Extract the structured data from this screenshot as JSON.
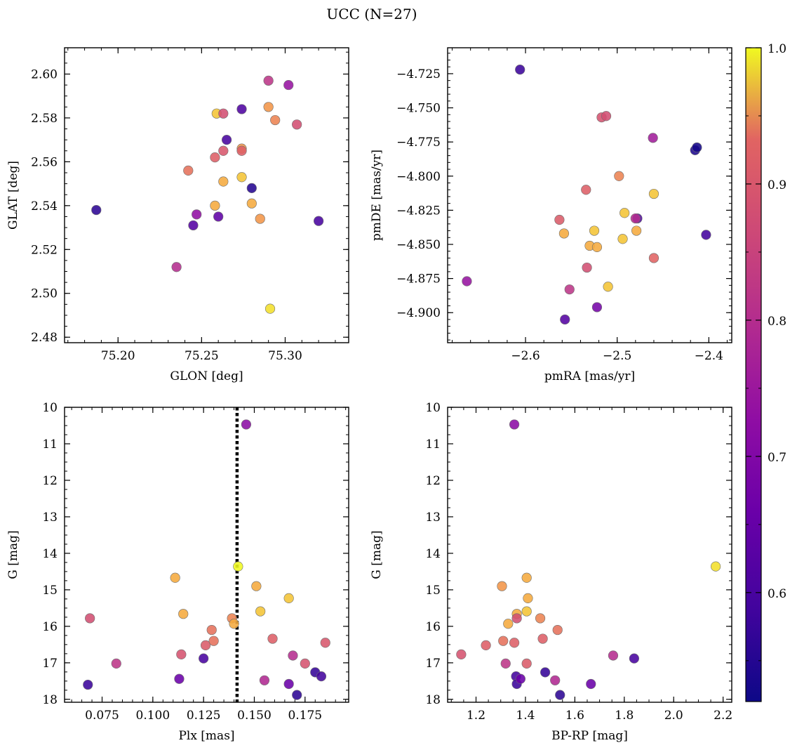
{
  "figure": {
    "title": "UCC (N=27)"
  },
  "colorbar": {
    "min": 0.52,
    "max": 1.0,
    "ticks": [
      0.6,
      0.7,
      0.8,
      0.9,
      1.0
    ],
    "tick_labels": [
      "0.6",
      "0.7",
      "0.8",
      "0.9",
      "1.0"
    ],
    "colormap": "plasma"
  },
  "chart_data": [
    {
      "type": "scatter",
      "id": "lon-lat",
      "xlabel": "GLON [deg]",
      "ylabel": "GLAT [deg]",
      "xlim": [
        75.168,
        75.338
      ],
      "ylim": [
        2.4775,
        2.612
      ],
      "y_inverted": false,
      "xticks": [
        75.2,
        75.25,
        75.3
      ],
      "xtick_labels": [
        "75.20",
        "75.25",
        "75.30"
      ],
      "yticks": [
        2.48,
        2.5,
        2.52,
        2.54,
        2.56,
        2.58,
        2.6
      ],
      "ytick_labels": [
        "2.48",
        "2.50",
        "2.52",
        "2.54",
        "2.56",
        "2.58",
        "2.60"
      ],
      "x_minor_step": 0.01,
      "y_minor_step": 0.005,
      "points": [
        {
          "x": 75.187,
          "y": 2.538,
          "c": 0.56
        },
        {
          "x": 75.235,
          "y": 2.512,
          "c": 0.8
        },
        {
          "x": 75.242,
          "y": 2.556,
          "c": 0.94
        },
        {
          "x": 75.245,
          "y": 2.531,
          "c": 0.62
        },
        {
          "x": 75.247,
          "y": 2.536,
          "c": 0.73
        },
        {
          "x": 75.258,
          "y": 2.54,
          "c": 0.97
        },
        {
          "x": 75.258,
          "y": 2.562,
          "c": 0.92
        },
        {
          "x": 75.259,
          "y": 2.582,
          "c": 0.98
        },
        {
          "x": 75.26,
          "y": 2.535,
          "c": 0.64
        },
        {
          "x": 75.263,
          "y": 2.565,
          "c": 0.9
        },
        {
          "x": 75.263,
          "y": 2.582,
          "c": 0.88
        },
        {
          "x": 75.263,
          "y": 2.551,
          "c": 0.97
        },
        {
          "x": 75.265,
          "y": 2.57,
          "c": 0.6
        },
        {
          "x": 75.274,
          "y": 2.584,
          "c": 0.61
        },
        {
          "x": 75.274,
          "y": 2.566,
          "c": 0.96
        },
        {
          "x": 75.274,
          "y": 2.553,
          "c": 0.98
        },
        {
          "x": 75.28,
          "y": 2.548,
          "c": 0.55
        },
        {
          "x": 75.28,
          "y": 2.541,
          "c": 0.97
        },
        {
          "x": 75.285,
          "y": 2.534,
          "c": 0.96
        },
        {
          "x": 75.29,
          "y": 2.597,
          "c": 0.82
        },
        {
          "x": 75.29,
          "y": 2.585,
          "c": 0.96
        },
        {
          "x": 75.291,
          "y": 2.493,
          "c": 0.99
        },
        {
          "x": 75.294,
          "y": 2.579,
          "c": 0.95
        },
        {
          "x": 75.302,
          "y": 2.595,
          "c": 0.74
        },
        {
          "x": 75.307,
          "y": 2.577,
          "c": 0.88
        },
        {
          "x": 75.32,
          "y": 2.533,
          "c": 0.6
        },
        {
          "x": 75.274,
          "y": 2.565,
          "c": 0.92
        }
      ]
    },
    {
      "type": "scatter",
      "id": "pm",
      "xlabel": "pmRA [mas/yr]",
      "ylabel": "pmDE [mas/yr]",
      "xlim": [
        -2.685,
        -2.375
      ],
      "ylim": [
        -4.922,
        -4.706
      ],
      "y_inverted": false,
      "xticks": [
        -2.6,
        -2.5,
        -2.4
      ],
      "xtick_labels": [
        "−2.6",
        "−2.5",
        "−2.4"
      ],
      "yticks": [
        -4.9,
        -4.875,
        -4.85,
        -4.825,
        -4.8,
        -4.775,
        -4.75,
        -4.725
      ],
      "ytick_labels": [
        "−4.900",
        "−4.875",
        "−4.850",
        "−4.825",
        "−4.800",
        "−4.775",
        "−4.750",
        "−4.725"
      ],
      "x_minor_step": 0.02,
      "y_minor_step": 0.005,
      "points": [
        {
          "x": -2.606,
          "y": -4.722,
          "c": 0.58
        },
        {
          "x": -2.664,
          "y": -4.877,
          "c": 0.74
        },
        {
          "x": -2.563,
          "y": -4.832,
          "c": 0.91
        },
        {
          "x": -2.558,
          "y": -4.842,
          "c": 0.97
        },
        {
          "x": -2.557,
          "y": -4.905,
          "c": 0.62
        },
        {
          "x": -2.552,
          "y": -4.883,
          "c": 0.82
        },
        {
          "x": -2.534,
          "y": -4.81,
          "c": 0.92
        },
        {
          "x": -2.533,
          "y": -4.867,
          "c": 0.88
        },
        {
          "x": -2.53,
          "y": -4.851,
          "c": 0.97
        },
        {
          "x": -2.525,
          "y": -4.84,
          "c": 0.98
        },
        {
          "x": -2.522,
          "y": -4.852,
          "c": 0.97
        },
        {
          "x": -2.522,
          "y": -4.896,
          "c": 0.68
        },
        {
          "x": -2.517,
          "y": -4.757,
          "c": 0.89
        },
        {
          "x": -2.512,
          "y": -4.756,
          "c": 0.88
        },
        {
          "x": -2.51,
          "y": -4.881,
          "c": 0.98
        },
        {
          "x": -2.498,
          "y": -4.8,
          "c": 0.95
        },
        {
          "x": -2.494,
          "y": -4.846,
          "c": 0.98
        },
        {
          "x": -2.492,
          "y": -4.827,
          "c": 0.98
        },
        {
          "x": -2.479,
          "y": -4.84,
          "c": 0.97
        },
        {
          "x": -2.478,
          "y": -4.831,
          "c": 0.61
        },
        {
          "x": -2.48,
          "y": -4.831,
          "c": 0.8
        },
        {
          "x": -2.461,
          "y": -4.772,
          "c": 0.76
        },
        {
          "x": -2.46,
          "y": -4.813,
          "c": 0.98
        },
        {
          "x": -2.46,
          "y": -4.86,
          "c": 0.93
        },
        {
          "x": -2.415,
          "y": -4.781,
          "c": 0.54
        },
        {
          "x": -2.413,
          "y": -4.779,
          "c": 0.53
        },
        {
          "x": -2.403,
          "y": -4.843,
          "c": 0.59
        }
      ]
    },
    {
      "type": "scatter",
      "id": "plx-g",
      "xlabel": "Plx [mas]",
      "ylabel": "G [mag]",
      "xlim": [
        0.0565,
        0.1965
      ],
      "ylim": [
        18.08,
        10.0
      ],
      "y_inverted": true,
      "xticks": [
        0.075,
        0.1,
        0.125,
        0.15,
        0.175
      ],
      "xtick_labels": [
        "0.075",
        "0.100",
        "0.125",
        "0.150",
        "0.175"
      ],
      "yticks": [
        10,
        11,
        12,
        13,
        14,
        15,
        16,
        17,
        18
      ],
      "ytick_labels": [
        "10",
        "11",
        "12",
        "13",
        "14",
        "15",
        "16",
        "17",
        "18"
      ],
      "x_minor_step": 0.005,
      "y_minor_step": 0.25,
      "vline": {
        "x": 0.1415
      },
      "points": [
        {
          "x": 0.068,
          "y": 17.6,
          "c": 0.58
        },
        {
          "x": 0.069,
          "y": 15.78,
          "c": 0.88
        },
        {
          "x": 0.082,
          "y": 17.02,
          "c": 0.82
        },
        {
          "x": 0.111,
          "y": 14.67,
          "c": 0.97
        },
        {
          "x": 0.113,
          "y": 17.44,
          "c": 0.66
        },
        {
          "x": 0.114,
          "y": 16.77,
          "c": 0.89
        },
        {
          "x": 0.115,
          "y": 15.66,
          "c": 0.97
        },
        {
          "x": 0.125,
          "y": 16.88,
          "c": 0.6
        },
        {
          "x": 0.126,
          "y": 16.52,
          "c": 0.91
        },
        {
          "x": 0.129,
          "y": 16.1,
          "c": 0.94
        },
        {
          "x": 0.13,
          "y": 16.4,
          "c": 0.94
        },
        {
          "x": 0.139,
          "y": 15.78,
          "c": 0.95
        },
        {
          "x": 0.14,
          "y": 15.93,
          "c": 0.97
        },
        {
          "x": 0.142,
          "y": 14.36,
          "c": 1.0
        },
        {
          "x": 0.146,
          "y": 10.47,
          "c": 0.72
        },
        {
          "x": 0.151,
          "y": 14.9,
          "c": 0.97
        },
        {
          "x": 0.153,
          "y": 15.59,
          "c": 0.98
        },
        {
          "x": 0.155,
          "y": 17.48,
          "c": 0.79
        },
        {
          "x": 0.159,
          "y": 16.34,
          "c": 0.92
        },
        {
          "x": 0.167,
          "y": 15.23,
          "c": 0.98
        },
        {
          "x": 0.167,
          "y": 17.58,
          "c": 0.66
        },
        {
          "x": 0.169,
          "y": 16.8,
          "c": 0.8
        },
        {
          "x": 0.171,
          "y": 17.88,
          "c": 0.56
        },
        {
          "x": 0.175,
          "y": 17.02,
          "c": 0.89
        },
        {
          "x": 0.18,
          "y": 17.26,
          "c": 0.57
        },
        {
          "x": 0.183,
          "y": 17.37,
          "c": 0.59
        },
        {
          "x": 0.185,
          "y": 16.45,
          "c": 0.9
        }
      ]
    },
    {
      "type": "scatter",
      "id": "bprp-g",
      "xlabel": "BP-RP [mag]",
      "ylabel": "G [mag]",
      "xlim": [
        1.085,
        2.235
      ],
      "ylim": [
        18.08,
        10.0
      ],
      "y_inverted": true,
      "xticks": [
        1.2,
        1.4,
        1.6,
        1.8,
        2.0,
        2.2
      ],
      "xtick_labels": [
        "1.2",
        "1.4",
        "1.6",
        "1.8",
        "2.0",
        "2.2"
      ],
      "yticks": [
        10,
        11,
        12,
        13,
        14,
        15,
        16,
        17,
        18
      ],
      "ytick_labels": [
        "10",
        "11",
        "12",
        "13",
        "14",
        "15",
        "16",
        "17",
        "18"
      ],
      "x_minor_step": 0.05,
      "y_minor_step": 0.25,
      "points": [
        {
          "x": 1.14,
          "y": 16.77,
          "c": 0.89
        },
        {
          "x": 1.24,
          "y": 16.52,
          "c": 0.92
        },
        {
          "x": 1.305,
          "y": 14.9,
          "c": 0.96
        },
        {
          "x": 1.31,
          "y": 16.4,
          "c": 0.94
        },
        {
          "x": 1.32,
          "y": 17.02,
          "c": 0.82
        },
        {
          "x": 1.33,
          "y": 15.93,
          "c": 0.97
        },
        {
          "x": 1.355,
          "y": 16.45,
          "c": 0.92
        },
        {
          "x": 1.355,
          "y": 10.47,
          "c": 0.72
        },
        {
          "x": 1.362,
          "y": 17.37,
          "c": 0.59
        },
        {
          "x": 1.365,
          "y": 15.66,
          "c": 0.97
        },
        {
          "x": 1.365,
          "y": 15.78,
          "c": 0.88
        },
        {
          "x": 1.365,
          "y": 17.58,
          "c": 0.58
        },
        {
          "x": 1.38,
          "y": 17.44,
          "c": 0.66
        },
        {
          "x": 1.405,
          "y": 14.67,
          "c": 0.97
        },
        {
          "x": 1.405,
          "y": 15.59,
          "c": 0.98
        },
        {
          "x": 1.41,
          "y": 15.23,
          "c": 0.97
        },
        {
          "x": 1.405,
          "y": 17.02,
          "c": 0.91
        },
        {
          "x": 1.46,
          "y": 15.78,
          "c": 0.95
        },
        {
          "x": 1.47,
          "y": 16.34,
          "c": 0.92
        },
        {
          "x": 1.48,
          "y": 17.26,
          "c": 0.57
        },
        {
          "x": 1.52,
          "y": 17.48,
          "c": 0.79
        },
        {
          "x": 1.53,
          "y": 16.1,
          "c": 0.94
        },
        {
          "x": 1.54,
          "y": 17.88,
          "c": 0.56
        },
        {
          "x": 1.665,
          "y": 17.58,
          "c": 0.66
        },
        {
          "x": 1.755,
          "y": 16.8,
          "c": 0.8
        },
        {
          "x": 1.84,
          "y": 16.88,
          "c": 0.6
        },
        {
          "x": 2.17,
          "y": 14.36,
          "c": 0.99
        }
      ]
    }
  ]
}
